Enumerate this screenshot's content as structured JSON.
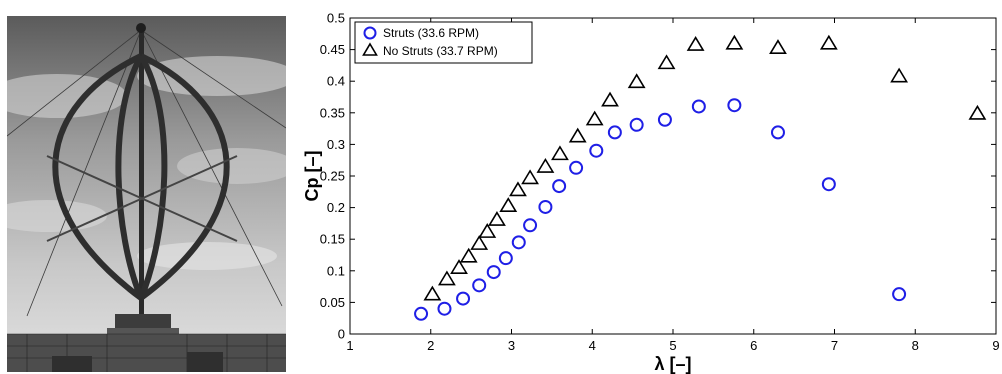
{
  "colors": {
    "struts": "#1f1fe6",
    "no_struts": "#000000"
  },
  "photo": {
    "icon": "vertical-axis-wind-turbine-photo"
  },
  "chart_data": {
    "type": "scatter",
    "xlabel": "λ [–]",
    "ylabel": "Cp [–]",
    "xlim": [
      1,
      9
    ],
    "ylim": [
      0,
      0.5
    ],
    "xticks": [
      "1",
      "2",
      "3",
      "4",
      "5",
      "6",
      "7",
      "8",
      "9"
    ],
    "yticks": [
      "0",
      "0.05",
      "0.1",
      "0.15",
      "0.2",
      "0.25",
      "0.3",
      "0.35",
      "0.4",
      "0.45",
      "0.5"
    ],
    "grid": false,
    "legend_position": "top-left",
    "series": [
      {
        "name": "Struts (33.6 RPM)",
        "marker": "circle",
        "color": "#1f1fe6",
        "x": [
          1.88,
          2.17,
          2.4,
          2.6,
          2.78,
          2.93,
          3.09,
          3.23,
          3.42,
          3.59,
          3.8,
          4.05,
          4.28,
          4.55,
          4.9,
          5.32,
          5.76,
          6.3,
          6.93,
          7.8
        ],
        "y": [
          0.032,
          0.04,
          0.056,
          0.077,
          0.098,
          0.12,
          0.145,
          0.172,
          0.201,
          0.234,
          0.263,
          0.29,
          0.319,
          0.331,
          0.339,
          0.36,
          0.362,
          0.319,
          0.237,
          0.063
        ]
      },
      {
        "name": "No Struts (33.7 RPM)",
        "marker": "triangle",
        "color": "#000000",
        "x": [
          2.02,
          2.2,
          2.35,
          2.47,
          2.6,
          2.7,
          2.82,
          2.96,
          3.08,
          3.23,
          3.42,
          3.6,
          3.82,
          4.03,
          4.22,
          4.55,
          4.92,
          5.28,
          5.76,
          6.3,
          6.93,
          7.8,
          8.77
        ],
        "y": [
          0.063,
          0.087,
          0.105,
          0.123,
          0.143,
          0.162,
          0.181,
          0.203,
          0.228,
          0.247,
          0.265,
          0.285,
          0.313,
          0.34,
          0.37,
          0.399,
          0.429,
          0.458,
          0.46,
          0.453,
          0.46,
          0.408,
          0.349
        ]
      }
    ]
  }
}
